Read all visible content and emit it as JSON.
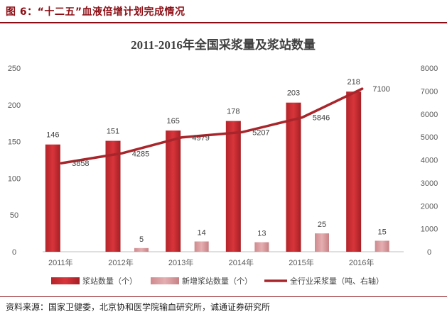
{
  "figure_label": "图 6：",
  "figure_title": "“十二五”血液倍增计划完成情况",
  "source": "资料来源：国家卫健委，北京协和医学院输血研究所，诚通证券研究所",
  "chart_data": {
    "type": "bar",
    "title": "2011-2016年全国采浆量及浆站数量",
    "categories": [
      "2011年",
      "2012年",
      "2013年",
      "2014年",
      "2015年",
      "2016年"
    ],
    "series": [
      {
        "name": "浆站数量（个）",
        "type": "bar",
        "axis": "left",
        "color": "#c0282e",
        "values": [
          146,
          151,
          165,
          178,
          203,
          218
        ]
      },
      {
        "name": "新增浆站数量（个）",
        "type": "bar",
        "axis": "left",
        "color": "#d9969a",
        "values": [
          null,
          5,
          14,
          13,
          25,
          15
        ]
      },
      {
        "name": "全行业采浆量（吨、右轴）",
        "type": "line",
        "axis": "right",
        "color": "#a8262b",
        "values": [
          3858,
          4285,
          4979,
          5207,
          5846,
          7100
        ]
      }
    ],
    "ylim_left": [
      0,
      250
    ],
    "yticks_left": [
      0,
      50,
      100,
      150,
      200,
      250
    ],
    "ylim_right": [
      0,
      8000
    ],
    "yticks_right": [
      0,
      1000,
      2000,
      3000,
      4000,
      5000,
      6000,
      7000,
      8000
    ],
    "grid": false,
    "legend_position": "bottom"
  }
}
